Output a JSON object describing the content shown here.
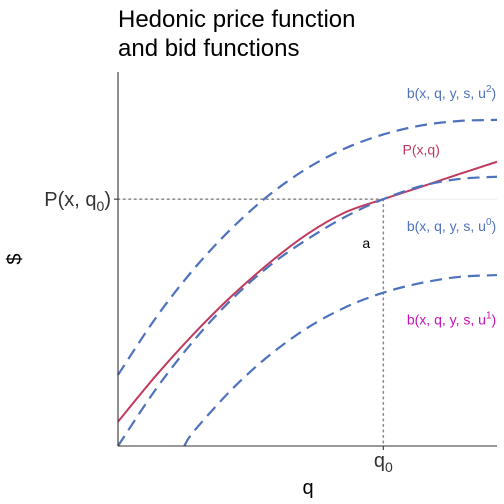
{
  "chart_data": {
    "type": "line",
    "title_lines": [
      "Hedonic price function",
      "and bid functions"
    ],
    "xlabel": "q",
    "ylabel": "$",
    "xlim": [
      0,
      10
    ],
    "ylim": [
      0,
      10
    ],
    "grid": false,
    "x_ticks": [
      {
        "value": 7,
        "label": "q",
        "sub": "0"
      }
    ],
    "y_ticks": [
      {
        "value": 6.6,
        "label": "P(x, q",
        "sub": "0",
        "suffix": ")"
      }
    ],
    "reference_point": {
      "x": 7,
      "y": 6.6
    },
    "point_label": {
      "text": "a",
      "x": 6.55,
      "y": 5.3
    },
    "colors": {
      "price": "#C03A5E",
      "bid": "#4F72BF",
      "u1_label": "#C711B7",
      "ref": "#8C8C8C",
      "axis": "#333333"
    },
    "series": [
      {
        "name": "P(x,q)",
        "style": "solid",
        "color": "#C03A5E",
        "x": [
          0,
          1,
          2,
          3,
          4,
          5,
          6,
          7,
          8,
          9,
          10
        ],
        "y": [
          0.65,
          1.88,
          3.0,
          4.01,
          4.9,
          5.67,
          6.25,
          6.6,
          6.93,
          7.27,
          7.6
        ]
      },
      {
        "name": "b(x, q, y, s, u^0)",
        "style": "dashed",
        "color": "#4F72BF",
        "x": [
          0,
          1,
          2,
          3,
          4,
          5,
          6,
          7,
          8,
          9,
          10
        ],
        "y": [
          0.0,
          1.52,
          2.82,
          3.92,
          4.82,
          5.53,
          6.13,
          6.6,
          6.95,
          7.14,
          7.2
        ]
      },
      {
        "name": "b(x, q, y, s, u^1)",
        "style": "dashed",
        "color": "#4F72BF",
        "x": [
          1.75,
          2,
          3,
          4,
          5,
          6,
          7,
          8,
          9,
          10
        ],
        "y": [
          0.0,
          0.39,
          1.51,
          2.43,
          3.16,
          3.71,
          4.1,
          4.36,
          4.52,
          4.57
        ]
      },
      {
        "name": "b(x, q, y, s, u^2)",
        "style": "dashed",
        "color": "#4F72BF",
        "x": [
          0,
          1,
          2,
          3,
          4,
          5,
          6,
          7,
          8,
          9,
          10
        ],
        "y": [
          1.9,
          3.43,
          4.73,
          5.82,
          6.72,
          7.43,
          7.96,
          8.33,
          8.57,
          8.69,
          8.72
        ]
      }
    ],
    "labels": [
      {
        "text": "P(x,q)",
        "sub": "",
        "color": "#C03A5E",
        "x": 8.0,
        "y": 7.8
      },
      {
        "text": "b(x, q, y, s, u",
        "sup": "2",
        "suffix": ")",
        "color": "#4F72BF",
        "x": 8.8,
        "y": 9.3
      },
      {
        "text": "b(x, q, y, s, u",
        "sup": "0",
        "suffix": ")",
        "color": "#4F72BF",
        "x": 8.8,
        "y": 5.75
      },
      {
        "text": "b(x, q, y, s, u",
        "sup": "1",
        "suffix": ")",
        "color": "#C711B7",
        "x": 8.8,
        "y": 3.25
      }
    ]
  }
}
